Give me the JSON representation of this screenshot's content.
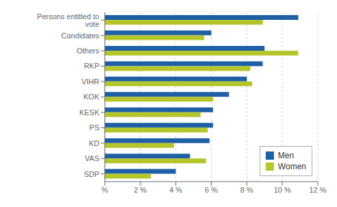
{
  "chart_data": {
    "type": "bar",
    "orientation": "horizontal",
    "categories": [
      "Persons entitled to vote",
      "Candidates",
      "Others",
      "RKP",
      "VIHR",
      "KOK",
      "KESK",
      "PS",
      "KD",
      "VAS",
      "SDP"
    ],
    "series": [
      {
        "name": "Men",
        "color": "#1f5fa6",
        "values": [
          10.9,
          6.0,
          9.0,
          8.9,
          8.0,
          7.0,
          6.1,
          6.1,
          5.9,
          4.8,
          4.0
        ]
      },
      {
        "name": "Women",
        "color": "#b5c62b",
        "values": [
          8.9,
          5.6,
          10.9,
          8.2,
          8.3,
          6.1,
          5.4,
          5.8,
          3.9,
          5.7,
          2.6
        ]
      }
    ],
    "xlim": [
      0,
      12
    ],
    "xticks": [
      {
        "value": 0,
        "label": "%"
      },
      {
        "value": 2,
        "label": "2 %"
      },
      {
        "value": 4,
        "label": "4 %"
      },
      {
        "value": 6,
        "label": "6 %"
      },
      {
        "value": 8,
        "label": "8 %"
      },
      {
        "value": 10,
        "label": "10 %"
      },
      {
        "value": 12,
        "label": "12 %"
      }
    ],
    "grid": true,
    "legend": "lower right"
  }
}
